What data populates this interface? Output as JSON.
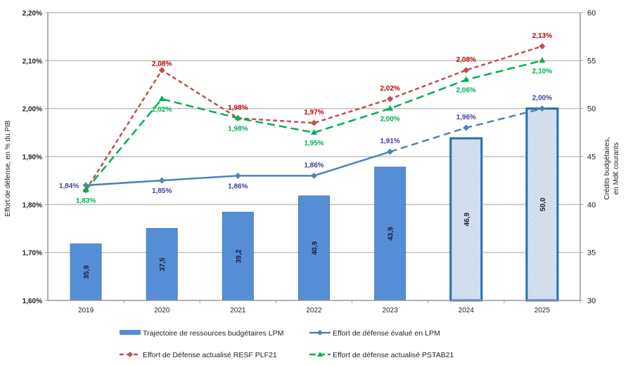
{
  "chart_data": {
    "type": "bar+line",
    "categories": [
      "2019",
      "2020",
      "2021",
      "2022",
      "2023",
      "2024",
      "2025"
    ],
    "ylabel_left": "Effort de défense, en % du PIB",
    "ylabel_right": [
      "Crédits budgétaires,",
      "en Md€ courants"
    ],
    "ylim_left": [
      1.6,
      2.2
    ],
    "yticks_left": [
      "1,60%",
      "1,70%",
      "1,80%",
      "1,90%",
      "2,00%",
      "2,10%",
      "2,20%"
    ],
    "ylim_right": [
      30,
      60
    ],
    "yticks_right": [
      "30",
      "35",
      "40",
      "45",
      "50",
      "55",
      "60"
    ],
    "grid": true,
    "legend_placement": "bottom",
    "bars": {
      "name": "Trajectoire de ressources budgétaires LPM",
      "axis": "right",
      "values": [
        35.9,
        37.5,
        39.2,
        40.9,
        43.9,
        46.9,
        50.0
      ],
      "labels": [
        "35,9",
        "37,5",
        "39,2",
        "40,9",
        "43,9",
        "46,9",
        "50,0"
      ],
      "projected_from": "2024",
      "color": "#558ed5",
      "projected_border": "#1f6fb8"
    },
    "series": [
      {
        "name": "Effort de défense évalué en LPM",
        "axis": "left",
        "values": [
          1.84,
          1.85,
          1.86,
          1.86,
          1.91,
          1.96,
          2.0
        ],
        "labels": [
          "1,84%",
          "1,85%",
          "1,86%",
          "1,86%",
          "1,91%",
          "1,96%",
          "2,00%"
        ],
        "color": "#4f81bd",
        "label_color": "#3d3d9e",
        "marker": "diamond",
        "dashed_from": "2023"
      },
      {
        "name": "Effort de Défense actualisé RESF PLF21",
        "axis": "left",
        "values": [
          1.83,
          2.08,
          1.98,
          1.97,
          2.02,
          2.08,
          2.13
        ],
        "labels": [
          "",
          "2,08%",
          "1,98%",
          "1,97%",
          "2,02%",
          "2,08%",
          "2,13%"
        ],
        "color": "#c0504d",
        "label_color": "#c00000",
        "marker": "diamond",
        "dash": "short"
      },
      {
        "name": "Effort de défense actualisé PSTAB21",
        "axis": "left",
        "values": [
          1.83,
          2.02,
          1.98,
          1.95,
          2.0,
          2.06,
          2.1
        ],
        "labels": [
          "1,83%",
          "2,02%",
          "1,98%",
          "1,95%",
          "2,00%",
          "2,06%",
          "2,10%"
        ],
        "color": "#00b050",
        "label_color": "#00b050",
        "marker": "triangle",
        "dash": "long"
      }
    ]
  }
}
